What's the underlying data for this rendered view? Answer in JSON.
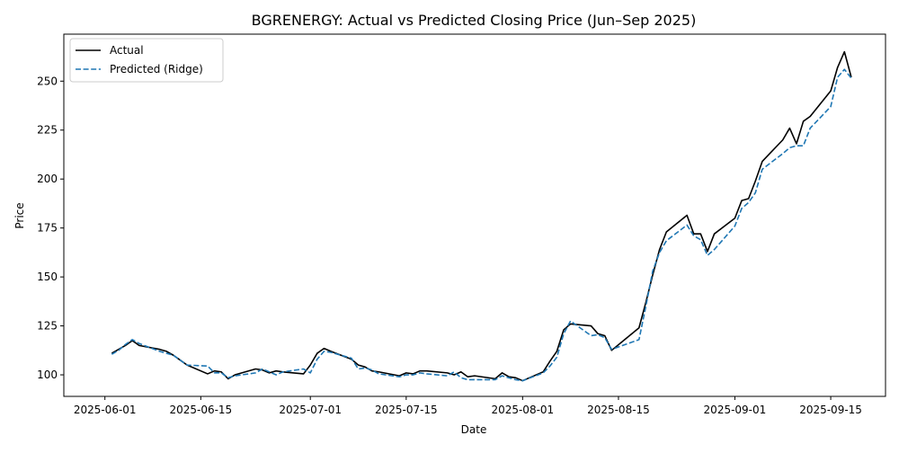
{
  "chart_data": {
    "type": "line",
    "title": "BGRENERGY: Actual vs Predicted Closing Price (Jun–Sep 2025)",
    "xlabel": "Date",
    "ylabel": "Price",
    "xlim": [
      "2025-05-26",
      "2025-09-23"
    ],
    "ylim": [
      89,
      274
    ],
    "x_ticks": [
      "2025-06-01",
      "2025-06-15",
      "2025-07-01",
      "2025-07-15",
      "2025-08-01",
      "2025-08-15",
      "2025-09-01",
      "2025-09-15"
    ],
    "y_ticks": [
      100,
      125,
      150,
      175,
      200,
      225,
      250
    ],
    "grid": false,
    "legend_position": "top-left",
    "series": [
      {
        "name": "Actual",
        "color": "#000000",
        "dash": "solid",
        "x": [
          "2025-06-02",
          "2025-06-03",
          "2025-06-04",
          "2025-06-05",
          "2025-06-06",
          "2025-06-09",
          "2025-06-10",
          "2025-06-11",
          "2025-06-12",
          "2025-06-13",
          "2025-06-16",
          "2025-06-17",
          "2025-06-18",
          "2025-06-19",
          "2025-06-20",
          "2025-06-23",
          "2025-06-24",
          "2025-06-25",
          "2025-06-26",
          "2025-06-27",
          "2025-06-30",
          "2025-07-01",
          "2025-07-02",
          "2025-07-03",
          "2025-07-04",
          "2025-07-07",
          "2025-07-08",
          "2025-07-09",
          "2025-07-10",
          "2025-07-11",
          "2025-07-14",
          "2025-07-15",
          "2025-07-16",
          "2025-07-17",
          "2025-07-18",
          "2025-07-21",
          "2025-07-22",
          "2025-07-23",
          "2025-07-24",
          "2025-07-25",
          "2025-07-28",
          "2025-07-29",
          "2025-07-30",
          "2025-07-31",
          "2025-08-01",
          "2025-08-04",
          "2025-08-05",
          "2025-08-06",
          "2025-08-07",
          "2025-08-08",
          "2025-08-11",
          "2025-08-12",
          "2025-08-13",
          "2025-08-14",
          "2025-08-18",
          "2025-08-19",
          "2025-08-20",
          "2025-08-21",
          "2025-08-22",
          "2025-08-25",
          "2025-08-26",
          "2025-08-27",
          "2025-08-28",
          "2025-08-29",
          "2025-09-01",
          "2025-09-02",
          "2025-09-03",
          "2025-09-04",
          "2025-09-05",
          "2025-09-08",
          "2025-09-09",
          "2025-09-10",
          "2025-09-11",
          "2025-09-12",
          "2025-09-15",
          "2025-09-16",
          "2025-09-17",
          "2025-09-18"
        ],
        "y": [
          111,
          113,
          115,
          117.5,
          115,
          113,
          112,
          110,
          107.5,
          105,
          100.5,
          102,
          101.5,
          98,
          100,
          103,
          102.5,
          101,
          102,
          101.5,
          100.5,
          105,
          111,
          113.5,
          112,
          108,
          105,
          104,
          102,
          101.5,
          99.5,
          101,
          100.5,
          102,
          102,
          101,
          100,
          101.5,
          99,
          99.5,
          98,
          101,
          99,
          98.5,
          97,
          101.5,
          107,
          112,
          123,
          126,
          125,
          121,
          120,
          112.5,
          124,
          137,
          151,
          164,
          173,
          181.5,
          172,
          172,
          163,
          172,
          180,
          189,
          190,
          199,
          209,
          220,
          226,
          218,
          229.5,
          232,
          245,
          257,
          265,
          252
        ]
      },
      {
        "name": "Predicted (Ridge)",
        "color": "#1f77b4",
        "dash": "dashed",
        "x": [
          "2025-06-02",
          "2025-06-03",
          "2025-06-04",
          "2025-06-05",
          "2025-06-06",
          "2025-06-09",
          "2025-06-10",
          "2025-06-11",
          "2025-06-12",
          "2025-06-13",
          "2025-06-16",
          "2025-06-17",
          "2025-06-18",
          "2025-06-19",
          "2025-06-20",
          "2025-06-23",
          "2025-06-24",
          "2025-06-25",
          "2025-06-26",
          "2025-06-27",
          "2025-06-30",
          "2025-07-01",
          "2025-07-02",
          "2025-07-03",
          "2025-07-04",
          "2025-07-07",
          "2025-07-08",
          "2025-07-09",
          "2025-07-10",
          "2025-07-11",
          "2025-07-14",
          "2025-07-15",
          "2025-07-16",
          "2025-07-17",
          "2025-07-18",
          "2025-07-21",
          "2025-07-22",
          "2025-07-23",
          "2025-07-24",
          "2025-07-25",
          "2025-07-28",
          "2025-07-29",
          "2025-07-30",
          "2025-07-31",
          "2025-08-01",
          "2025-08-04",
          "2025-08-05",
          "2025-08-06",
          "2025-08-07",
          "2025-08-08",
          "2025-08-11",
          "2025-08-12",
          "2025-08-13",
          "2025-08-14",
          "2025-08-18",
          "2025-08-19",
          "2025-08-20",
          "2025-08-21",
          "2025-08-22",
          "2025-08-25",
          "2025-08-26",
          "2025-08-27",
          "2025-08-28",
          "2025-08-29",
          "2025-09-01",
          "2025-09-02",
          "2025-09-03",
          "2025-09-04",
          "2025-09-05",
          "2025-09-08",
          "2025-09-09",
          "2025-09-10",
          "2025-09-11",
          "2025-09-12",
          "2025-09-15",
          "2025-09-16",
          "2025-09-17",
          "2025-09-18"
        ],
        "y": [
          110.5,
          112.5,
          115.5,
          118,
          116,
          112,
          111,
          110,
          107.5,
          105,
          104.5,
          101,
          101,
          98.5,
          99.5,
          101,
          103,
          101.5,
          100,
          101.5,
          103,
          101,
          108,
          112,
          111.5,
          108.5,
          103,
          103.5,
          102.5,
          100.5,
          99,
          100,
          100,
          101,
          100.5,
          99.5,
          101.5,
          98.5,
          97.5,
          97.5,
          97.5,
          99.5,
          98.5,
          97.5,
          97,
          101,
          104.5,
          109,
          121,
          127.5,
          120,
          120.5,
          119,
          113,
          118,
          135,
          153,
          162.5,
          168.5,
          176.5,
          171,
          169,
          161,
          164,
          176,
          185,
          188,
          193,
          205,
          213,
          216,
          217,
          217,
          226,
          237,
          252,
          256,
          251.5
        ]
      }
    ]
  }
}
